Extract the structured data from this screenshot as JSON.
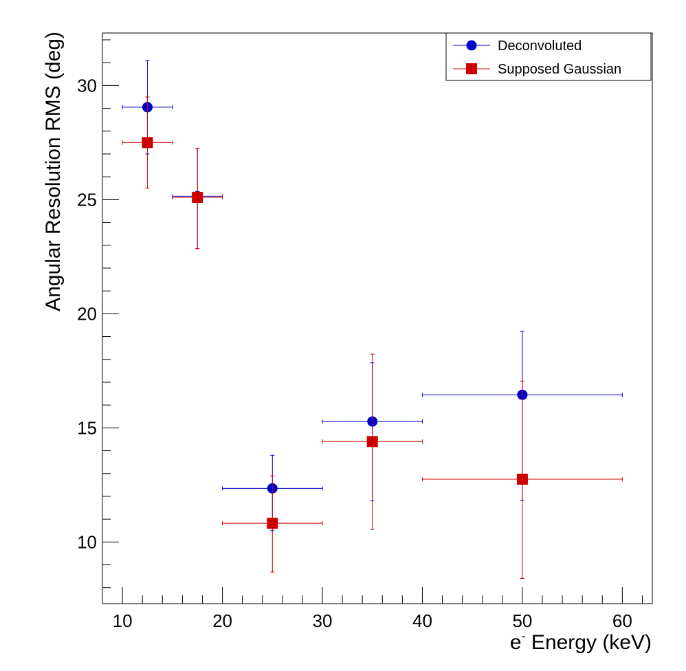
{
  "chart_data": {
    "type": "scatter",
    "title": "",
    "xlabel": {
      "base": "e",
      "superscript": "-",
      "rest": " Energy (keV)"
    },
    "ylabel": "Angular Resolution RMS (deg)",
    "xlim": [
      8,
      63
    ],
    "ylim": [
      7.3,
      32.3
    ],
    "x_ticks": [
      10,
      20,
      30,
      40,
      50,
      60
    ],
    "y_ticks": [
      10,
      15,
      20,
      25,
      30
    ],
    "x_tick_labels": [
      "10",
      "20",
      "30",
      "40",
      "50",
      "60"
    ],
    "y_tick_labels": [
      "10",
      "15",
      "20",
      "25",
      "30"
    ],
    "legend_position": "top-right",
    "series": [
      {
        "name": "Deconvoluted",
        "color": "#0000cc",
        "marker": "circle",
        "points": [
          {
            "x": 12.5,
            "xerr": 2.5,
            "y": 29.05,
            "yerr_low": 2.05,
            "yerr_high": 2.05
          },
          {
            "x": 17.5,
            "xerr": 2.5,
            "y": 25.15,
            "yerr_low": 2.3,
            "yerr_high": 2.1
          },
          {
            "x": 25,
            "xerr": 5,
            "y": 12.35,
            "yerr_low": 1.85,
            "yerr_high": 1.45
          },
          {
            "x": 35,
            "xerr": 5,
            "y": 15.28,
            "yerr_low": 3.48,
            "yerr_high": 2.57
          },
          {
            "x": 50,
            "xerr": 10,
            "y": 16.45,
            "yerr_low": 4.62,
            "yerr_high": 2.78
          }
        ]
      },
      {
        "name": "Supposed Gaussian",
        "color": "#cc0000",
        "marker": "square",
        "points": [
          {
            "x": 12.5,
            "xerr": 2.5,
            "y": 27.5,
            "yerr_low": 2.0,
            "yerr_high": 2.0
          },
          {
            "x": 17.5,
            "xerr": 2.5,
            "y": 25.1,
            "yerr_low": 2.25,
            "yerr_high": 2.15
          },
          {
            "x": 25,
            "xerr": 5,
            "y": 10.82,
            "yerr_low": 2.14,
            "yerr_high": 2.08
          },
          {
            "x": 35,
            "xerr": 5,
            "y": 14.4,
            "yerr_low": 3.85,
            "yerr_high": 3.83
          },
          {
            "x": 50,
            "xerr": 10,
            "y": 12.75,
            "yerr_low": 4.35,
            "yerr_high": 4.3
          }
        ]
      }
    ]
  }
}
